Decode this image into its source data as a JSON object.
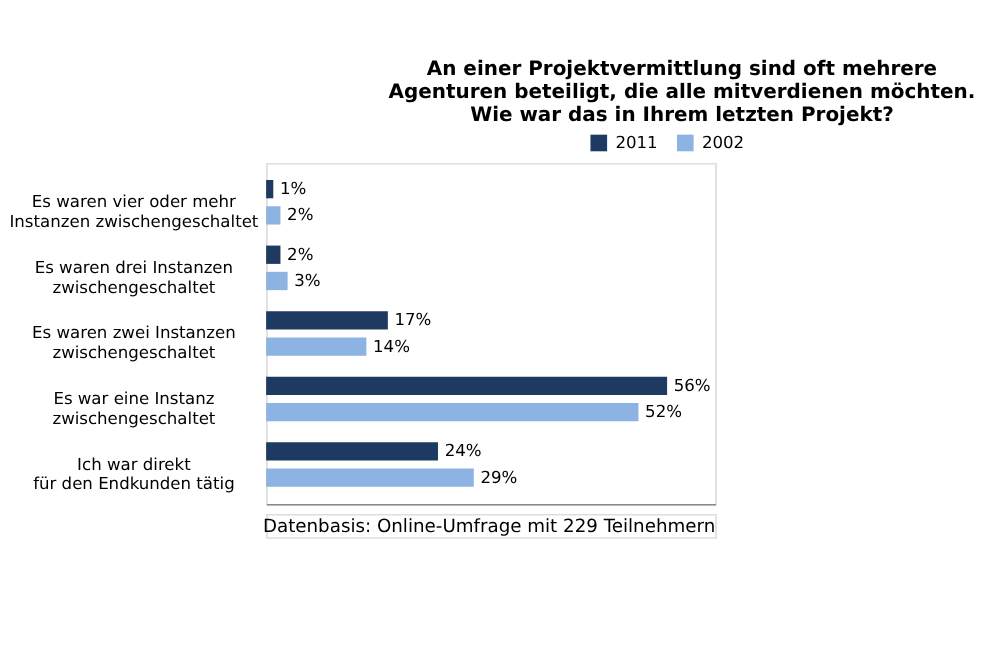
{
  "chart_data": {
    "type": "bar",
    "orientation": "horizontal",
    "title": "An einer Projektvermittlung sind oft mehrere\nAgenturen beteiligt, die alle mitverdienen möchten.\nWie war das in Ihrem letzten Projekt?",
    "categories": [
      "Es waren vier oder mehr\nInstanzen zwischengeschaltet",
      "Es waren drei Instanzen\nzwischengeschaltet",
      "Es waren zwei Instanzen\nzwischengeschaltet",
      "Es war eine Instanz\nzwischengeschaltet",
      "Ich war direkt\nfür den Endkunden tätig"
    ],
    "series": [
      {
        "name": "2011",
        "color": "#1f3a60",
        "values": [
          1,
          2,
          17,
          56,
          24
        ],
        "value_labels": [
          "1%",
          "2%",
          "17%",
          "56%",
          "24%"
        ]
      },
      {
        "name": "2002",
        "color": "#8db3e2",
        "values": [
          2,
          3,
          14,
          52,
          29
        ],
        "value_labels": [
          "2%",
          "3%",
          "14%",
          "52%",
          "29%"
        ]
      }
    ],
    "legend": "top right",
    "grid": false,
    "annotations": [
      "Datenbasis: Online-Umfrage mit 229 Teilnehmern"
    ]
  }
}
